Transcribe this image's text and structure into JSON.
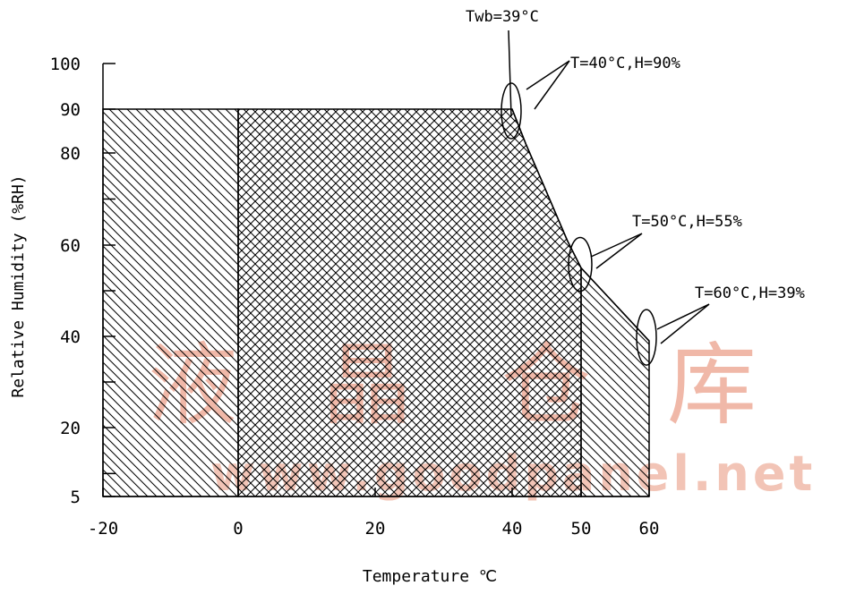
{
  "chart_data": {
    "type": "area",
    "xlabel": "Temperature ℃",
    "ylabel": "Relative Humidity (%RH)",
    "x_ticks": [
      "-20",
      "0",
      "20",
      "40",
      "50",
      "60"
    ],
    "y_ticks": [
      "5",
      "20",
      "40",
      "60",
      "80",
      "90",
      "100"
    ],
    "xlim": [
      -20,
      60
    ],
    "ylim": [
      5,
      100
    ],
    "grid": false,
    "regions": [
      {
        "fill": "single-hatch",
        "boundary": [
          {
            "x": -20,
            "y": 5
          },
          {
            "x": -20,
            "y": 90
          },
          {
            "x": 0,
            "y": 90
          },
          {
            "x": 0,
            "y": 5
          }
        ]
      },
      {
        "fill": "cross-hatch",
        "boundary": [
          {
            "x": 0,
            "y": 5
          },
          {
            "x": 0,
            "y": 90
          },
          {
            "x": 40,
            "y": 90
          },
          {
            "x": 42,
            "y": 82
          },
          {
            "x": 44,
            "y": 75
          },
          {
            "x": 46,
            "y": 68
          },
          {
            "x": 48,
            "y": 61
          },
          {
            "x": 50,
            "y": 55
          },
          {
            "x": 50,
            "y": 5
          }
        ]
      },
      {
        "fill": "single-hatch",
        "boundary": [
          {
            "x": 50,
            "y": 5
          },
          {
            "x": 50,
            "y": 55
          },
          {
            "x": 55,
            "y": 47
          },
          {
            "x": 60,
            "y": 39
          },
          {
            "x": 60,
            "y": 5
          }
        ]
      }
    ],
    "curve": [
      {
        "x": 40,
        "y": 90
      },
      {
        "x": 42,
        "y": 82
      },
      {
        "x": 44,
        "y": 75
      },
      {
        "x": 46,
        "y": 68
      },
      {
        "x": 48,
        "y": 61
      },
      {
        "x": 50,
        "y": 55
      },
      {
        "x": 55,
        "y": 47
      },
      {
        "x": 60,
        "y": 39
      }
    ],
    "annotations": [
      {
        "text": "Twb=39°C",
        "x": 40,
        "y": 90
      },
      {
        "text": "T=40°C,H=90%",
        "x": 40,
        "y": 90
      },
      {
        "text": "T=50°C,H=55%",
        "x": 50,
        "y": 55
      },
      {
        "text": "T=60°C,H=39%",
        "x": 60,
        "y": 39
      }
    ]
  },
  "watermark": {
    "characters": [
      "液",
      "晶",
      "仓",
      "库"
    ],
    "url": "www.goodpanel.net",
    "color": "#f0b8a8"
  }
}
